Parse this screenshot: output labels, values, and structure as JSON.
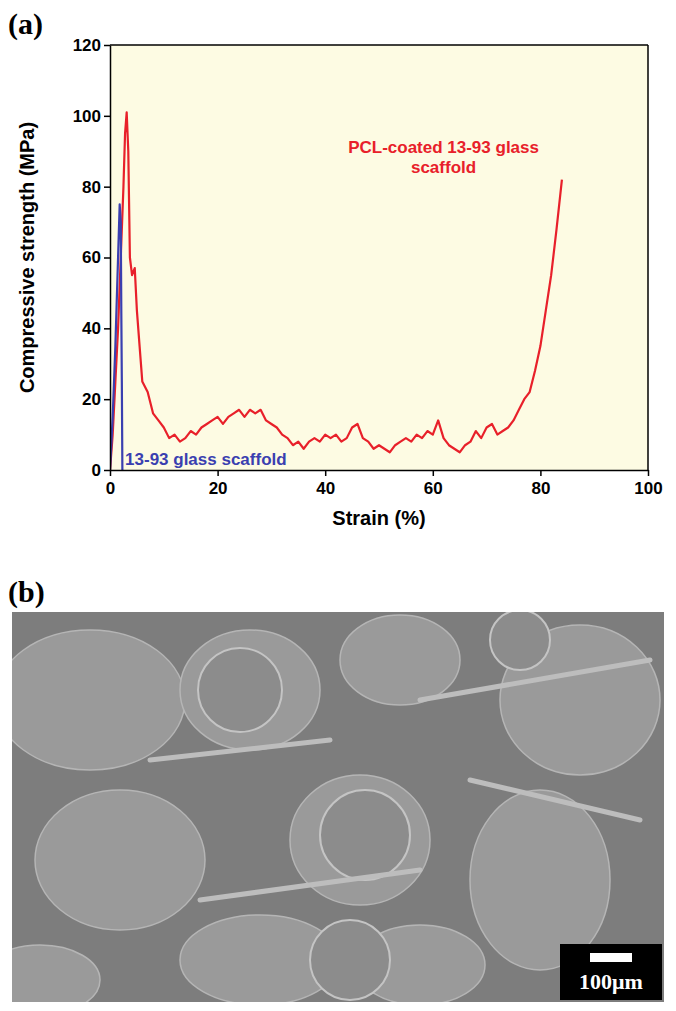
{
  "chart_data": {
    "type": "line",
    "panel_label": "(a)",
    "x_label": "Strain (%)",
    "y_label": "Compressive strength (MPa)",
    "xlim": [
      0,
      100
    ],
    "xticks": [
      0,
      20,
      40,
      60,
      80,
      100
    ],
    "ylim": [
      0,
      120
    ],
    "yticks": [
      0,
      20,
      40,
      60,
      80,
      100,
      120
    ],
    "series": [
      {
        "name": "PCL-coated 13-93 glass scaffold",
        "color": "#e8202a",
        "x": [
          0,
          0.5,
          1,
          1.5,
          2,
          2.5,
          2.8,
          3.1,
          3.4,
          3.7,
          4.1,
          4.6,
          5,
          5.5,
          6,
          7,
          8,
          9,
          10,
          11,
          12,
          13,
          14,
          15,
          16,
          17,
          18,
          19,
          20,
          21,
          22,
          23,
          24,
          25,
          26,
          27,
          28,
          29,
          30,
          31,
          32,
          33,
          34,
          35,
          36,
          37,
          38,
          39,
          40,
          41,
          42,
          43,
          44,
          45,
          46,
          47,
          48,
          49,
          50,
          51,
          52,
          53,
          54,
          55,
          56,
          57,
          58,
          59,
          60,
          61,
          62,
          63,
          64,
          65,
          66,
          67,
          68,
          69,
          70,
          71,
          72,
          73,
          74,
          75,
          76,
          77,
          78,
          79,
          80,
          81,
          82,
          83,
          84
        ],
        "values": [
          0,
          10,
          25,
          40,
          60,
          80,
          95,
          101,
          90,
          60,
          55,
          57,
          45,
          35,
          25,
          22,
          16,
          14,
          12,
          9,
          10,
          8,
          9,
          11,
          10,
          12,
          13,
          14,
          15,
          13,
          15,
          16,
          17,
          15,
          17,
          16,
          17,
          14,
          13,
          12,
          10,
          9,
          7,
          8,
          6,
          8,
          9,
          8,
          10,
          9,
          10,
          8,
          9,
          12,
          13,
          9,
          8,
          6,
          7,
          6,
          5,
          7,
          8,
          9,
          8,
          10,
          9,
          11,
          10,
          14,
          9,
          7,
          6,
          5,
          7,
          8,
          11,
          9,
          12,
          13,
          10,
          11,
          12,
          14,
          17,
          20,
          22,
          28,
          35,
          45,
          55,
          68,
          82
        ]
      },
      {
        "name": "13-93 glass scaffold",
        "color": "#3a3fb0",
        "x": [
          0,
          0.5,
          1,
          1.5,
          1.8,
          2,
          2.1,
          2.2,
          2.3
        ],
        "values": [
          0,
          15,
          35,
          60,
          75,
          70,
          45,
          25,
          0
        ]
      }
    ]
  },
  "image": {
    "panel_label": "(b)",
    "scale_bar": "100μm"
  }
}
